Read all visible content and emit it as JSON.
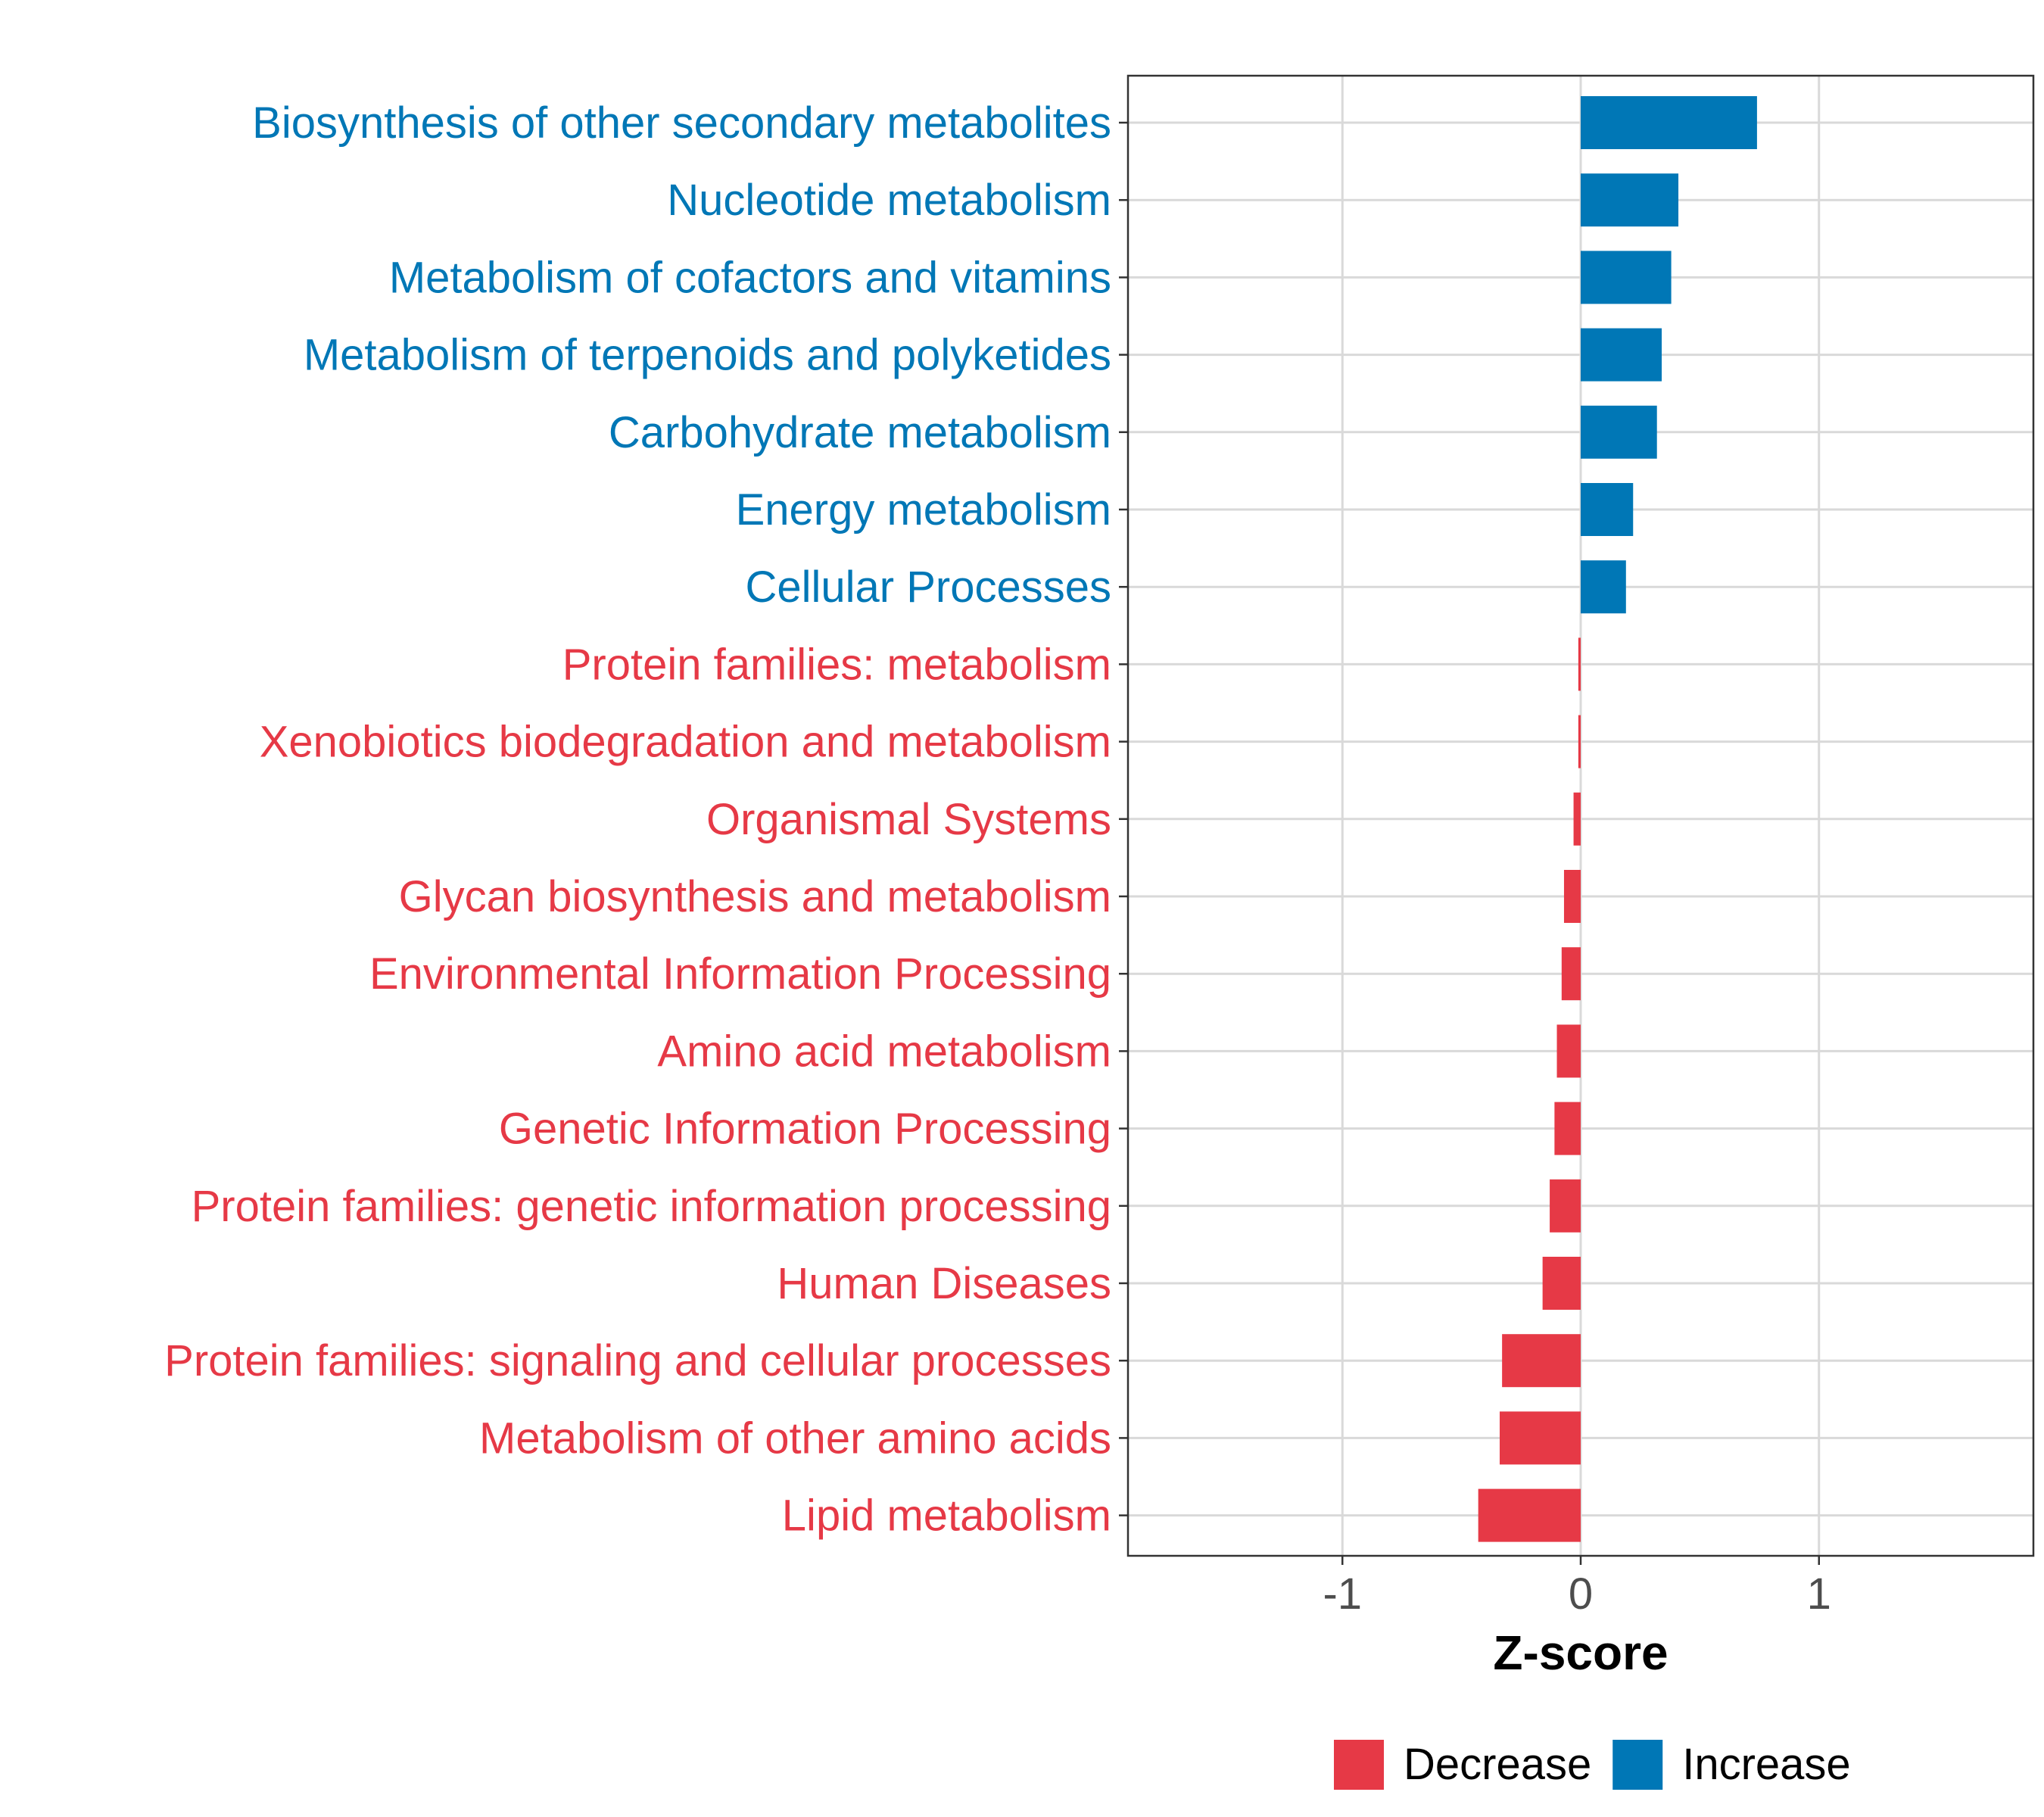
{
  "chart_data": {
    "type": "bar",
    "orientation": "horizontal",
    "title": "",
    "xlabel": "Z-score",
    "ylabel": "",
    "xlim": [
      -1.9,
      1.9
    ],
    "xticks": [
      -1,
      0,
      1
    ],
    "xtick_labels": [
      "-1",
      "0",
      "1"
    ],
    "grid": true,
    "categories": [
      "Biosynthesis of other secondary metabolites",
      "Nucleotide metabolism",
      "Metabolism of cofactors and vitamins",
      "Metabolism of terpenoids and polyketides",
      "Carbohydrate metabolism",
      "Energy metabolism",
      "Cellular Processes",
      "Protein families: metabolism",
      "Xenobiotics biodegradation and metabolism",
      "Organismal Systems",
      "Glycan biosynthesis and metabolism",
      "Environmental Information Processing",
      "Amino acid metabolism",
      "Genetic Information Processing",
      "Protein families: genetic information processing",
      "Human Diseases",
      "Protein families: signaling and cellular processes",
      "Metabolism of other amino acids",
      "Lipid metabolism"
    ],
    "values": [
      0.74,
      0.41,
      0.38,
      0.34,
      0.32,
      0.22,
      0.19,
      -0.01,
      -0.01,
      -0.03,
      -0.07,
      -0.08,
      -0.1,
      -0.11,
      -0.13,
      -0.16,
      -0.33,
      -0.34,
      -0.43
    ],
    "groups": [
      "Increase",
      "Increase",
      "Increase",
      "Increase",
      "Increase",
      "Increase",
      "Increase",
      "Decrease",
      "Decrease",
      "Decrease",
      "Decrease",
      "Decrease",
      "Decrease",
      "Decrease",
      "Decrease",
      "Decrease",
      "Decrease",
      "Decrease",
      "Decrease"
    ],
    "legend": {
      "position": "bottom",
      "items": [
        {
          "label": "Decrease",
          "color": "#E63946"
        },
        {
          "label": "Increase",
          "color": "#0077B6"
        }
      ]
    },
    "colors": {
      "Decrease": "#E63946",
      "Increase": "#0077B6"
    }
  }
}
